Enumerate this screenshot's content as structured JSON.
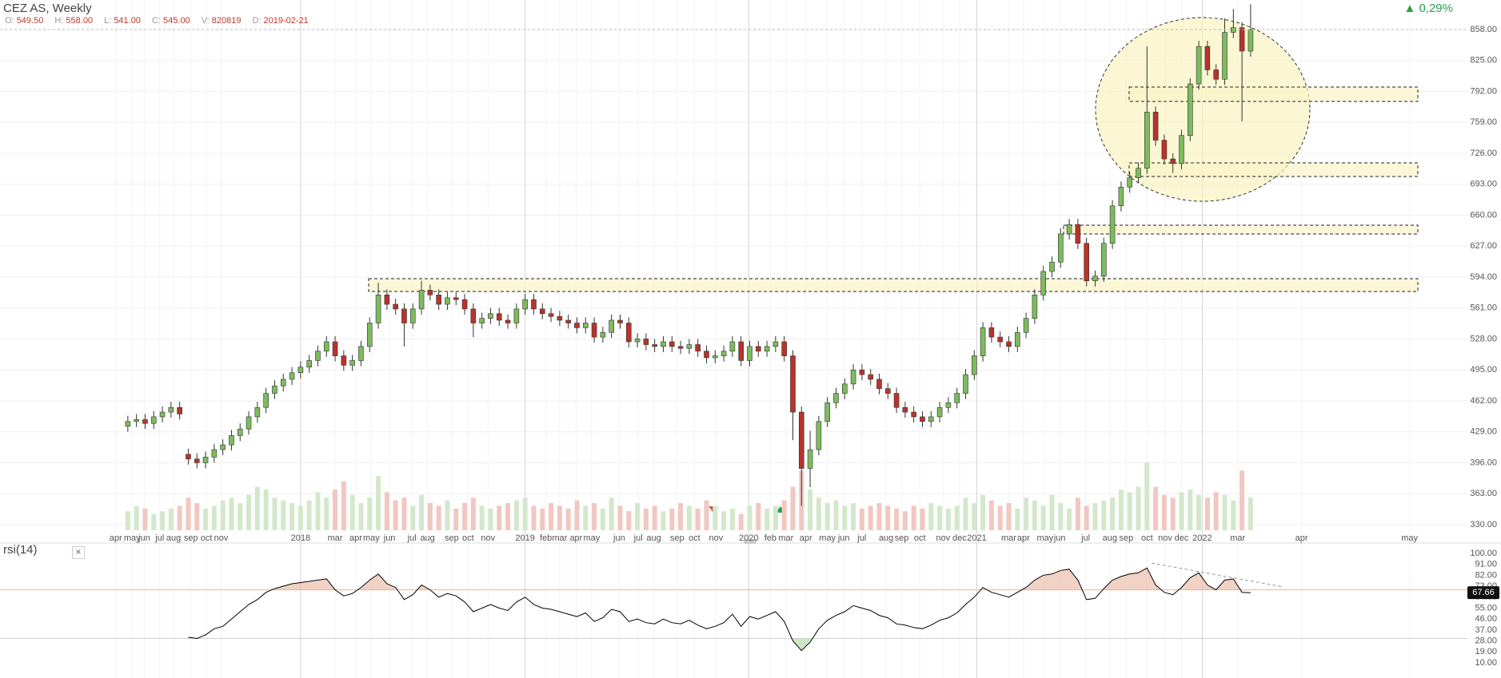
{
  "header": {
    "title": "CEZ AS, Weekly",
    "change": "0,29%",
    "info": [
      {
        "key": "O:",
        "value": "549.50"
      },
      {
        "key": "H:",
        "value": "558.00"
      },
      {
        "key": "L:",
        "value": "541.00"
      },
      {
        "key": "C:",
        "value": "545.00"
      },
      {
        "key": "V:",
        "value": "820819"
      },
      {
        "key": "D:",
        "value": "2019-02-21"
      }
    ]
  },
  "chart_data": [
    {
      "type": "candlestick",
      "up_color": "#7dbb5e",
      "down_color": "#b8332a",
      "grid": true,
      "xlim": [
        -14.8,
        155.1
      ],
      "ylim": [
        320.6,
        889.5
      ],
      "yticks": [
        {
          "value": 330,
          "label": "330.00"
        },
        {
          "value": 363,
          "label": "363.00"
        },
        {
          "value": 396,
          "label": "396.00"
        },
        {
          "value": 429,
          "label": "429.00"
        },
        {
          "value": 462,
          "label": "462.00"
        },
        {
          "value": 495,
          "label": "495.00"
        },
        {
          "value": 528,
          "label": "528.00"
        },
        {
          "value": 561,
          "label": "561.00"
        },
        {
          "value": 594,
          "label": "594.00"
        },
        {
          "value": 627,
          "label": "627.00"
        },
        {
          "value": 660,
          "label": "660.00"
        },
        {
          "value": 693,
          "label": "693.00"
        },
        {
          "value": 726,
          "label": "726.00"
        },
        {
          "value": 759,
          "label": "759.00"
        },
        {
          "value": 792,
          "label": "792.00"
        },
        {
          "value": 825,
          "label": "825.00"
        },
        {
          "value": 858,
          "label": "858.00"
        }
      ],
      "xticks": [
        {
          "value": -1.4,
          "label": "apr"
        },
        {
          "value": 0.5,
          "label": "may"
        },
        {
          "value": 1.9,
          "label": "jun"
        },
        {
          "value": 3.7,
          "label": "jul"
        },
        {
          "value": 5.3,
          "label": "aug"
        },
        {
          "value": 7.3,
          "label": "sep"
        },
        {
          "value": 9.1,
          "label": "oct"
        },
        {
          "value": 10.8,
          "label": "nov"
        },
        {
          "value": 20.0,
          "label": "2018"
        },
        {
          "value": 24.0,
          "label": "mar"
        },
        {
          "value": 26.4,
          "label": "apr"
        },
        {
          "value": 28.2,
          "label": "may"
        },
        {
          "value": 30.3,
          "label": "jun"
        },
        {
          "value": 32.9,
          "label": "jul"
        },
        {
          "value": 34.7,
          "label": "aug"
        },
        {
          "value": 37.5,
          "label": "sep"
        },
        {
          "value": 39.4,
          "label": "oct"
        },
        {
          "value": 41.7,
          "label": "nov"
        },
        {
          "value": 46.0,
          "label": "2019"
        },
        {
          "value": 48.4,
          "label": "feb"
        },
        {
          "value": 50.0,
          "label": "mar"
        },
        {
          "value": 51.9,
          "label": "apr"
        },
        {
          "value": 53.7,
          "label": "may"
        },
        {
          "value": 56.9,
          "label": "jun"
        },
        {
          "value": 59.1,
          "label": "jul"
        },
        {
          "value": 60.9,
          "label": "aug"
        },
        {
          "value": 63.6,
          "label": "sep"
        },
        {
          "value": 65.6,
          "label": "oct"
        },
        {
          "value": 68.1,
          "label": "nov"
        },
        {
          "value": 71.9,
          "label": "2020"
        },
        {
          "value": 74.4,
          "label": "feb"
        },
        {
          "value": 76.2,
          "label": "mar"
        },
        {
          "value": 78.5,
          "label": "apr"
        },
        {
          "value": 81.0,
          "label": "may"
        },
        {
          "value": 82.9,
          "label": "jun"
        },
        {
          "value": 85.0,
          "label": "jul"
        },
        {
          "value": 87.8,
          "label": "aug"
        },
        {
          "value": 89.6,
          "label": "sep"
        },
        {
          "value": 91.7,
          "label": "oct"
        },
        {
          "value": 94.4,
          "label": "nov"
        },
        {
          "value": 96.3,
          "label": "dec"
        },
        {
          "value": 98.3,
          "label": "2021"
        },
        {
          "value": 102.0,
          "label": "mar"
        },
        {
          "value": 103.7,
          "label": "apr"
        },
        {
          "value": 106.2,
          "label": "may"
        },
        {
          "value": 107.9,
          "label": "jun"
        },
        {
          "value": 110.9,
          "label": "jul"
        },
        {
          "value": 113.7,
          "label": "aug"
        },
        {
          "value": 115.6,
          "label": "sep"
        },
        {
          "value": 118.0,
          "label": "oct"
        },
        {
          "value": 120.1,
          "label": "nov"
        },
        {
          "value": 122.0,
          "label": "dec"
        },
        {
          "value": 124.4,
          "label": "2022"
        },
        {
          "value": 128.5,
          "label": "mar"
        },
        {
          "value": 135.9,
          "label": "apr"
        },
        {
          "value": 148.4,
          "label": "may"
        }
      ],
      "open": [
        435,
        440,
        442,
        438,
        445,
        450,
        455,
        405,
        400,
        396,
        402,
        410,
        415,
        425,
        432,
        445,
        455,
        470,
        478,
        485,
        492,
        498,
        505,
        515,
        525,
        510,
        500,
        505,
        520,
        545,
        575,
        565,
        560,
        545,
        560,
        580,
        575,
        565,
        572,
        570,
        560,
        545,
        550,
        555,
        548,
        545,
        560,
        570,
        560,
        555,
        552,
        548,
        545,
        540,
        545,
        530,
        535,
        548,
        545,
        525,
        528,
        522,
        520,
        525,
        520,
        518,
        522,
        515,
        508,
        510,
        515,
        525,
        505,
        520,
        515,
        520,
        525,
        510,
        450,
        390,
        410,
        440,
        460,
        470,
        480,
        495,
        490,
        485,
        475,
        470,
        455,
        450,
        445,
        440,
        445,
        455,
        460,
        470,
        490,
        510,
        540,
        530,
        525,
        520,
        535,
        550,
        575,
        600,
        610,
        640,
        650,
        630,
        590,
        595,
        630,
        670,
        690,
        700,
        710,
        770,
        740,
        720,
        715,
        745,
        800,
        840,
        815,
        805,
        855,
        860,
        835
      ],
      "high": [
        446,
        448,
        448,
        451,
        456,
        461,
        461,
        411,
        406,
        408,
        416,
        421,
        431,
        438,
        451,
        461,
        476,
        484,
        491,
        498,
        504,
        511,
        521,
        531,
        531,
        516,
        511,
        526,
        551,
        588,
        581,
        571,
        566,
        566,
        590,
        586,
        581,
        578,
        578,
        576,
        566,
        556,
        561,
        561,
        554,
        566,
        576,
        576,
        566,
        561,
        558,
        554,
        551,
        551,
        551,
        541,
        554,
        554,
        551,
        534,
        534,
        528,
        531,
        531,
        526,
        528,
        528,
        521,
        516,
        521,
        531,
        531,
        526,
        526,
        526,
        531,
        531,
        516,
        456,
        430,
        446,
        466,
        476,
        486,
        501,
        501,
        496,
        491,
        481,
        476,
        461,
        456,
        451,
        451,
        461,
        466,
        476,
        496,
        516,
        546,
        546,
        536,
        531,
        541,
        556,
        581,
        606,
        616,
        646,
        656,
        656,
        636,
        601,
        636,
        676,
        696,
        706,
        716,
        840,
        776,
        746,
        726,
        751,
        806,
        846,
        846,
        821,
        870,
        880,
        866,
        885
      ],
      "low": [
        429,
        434,
        432,
        432,
        439,
        444,
        442,
        394,
        390,
        390,
        396,
        404,
        409,
        419,
        426,
        439,
        449,
        464,
        472,
        479,
        486,
        492,
        499,
        509,
        504,
        494,
        494,
        499,
        514,
        539,
        559,
        554,
        520,
        539,
        554,
        569,
        559,
        559,
        564,
        554,
        530,
        539,
        544,
        542,
        539,
        539,
        554,
        554,
        549,
        546,
        542,
        539,
        534,
        534,
        524,
        524,
        529,
        539,
        519,
        519,
        516,
        514,
        514,
        514,
        512,
        512,
        509,
        502,
        502,
        504,
        509,
        499,
        499,
        509,
        509,
        514,
        504,
        420,
        350,
        370,
        404,
        434,
        454,
        464,
        474,
        484,
        479,
        469,
        464,
        449,
        444,
        439,
        434,
        434,
        439,
        449,
        454,
        464,
        484,
        504,
        524,
        519,
        514,
        514,
        529,
        544,
        569,
        594,
        604,
        634,
        624,
        584,
        584,
        589,
        624,
        664,
        684,
        694,
        704,
        734,
        714,
        705,
        709,
        739,
        794,
        809,
        799,
        799,
        849,
        760,
        829
      ],
      "close": [
        440,
        442,
        438,
        445,
        450,
        455,
        448,
        400,
        396,
        402,
        410,
        415,
        425,
        432,
        445,
        455,
        470,
        478,
        485,
        492,
        498,
        505,
        515,
        525,
        510,
        500,
        505,
        520,
        545,
        575,
        565,
        560,
        545,
        560,
        580,
        575,
        565,
        572,
        570,
        560,
        545,
        550,
        555,
        548,
        545,
        560,
        570,
        560,
        555,
        552,
        548,
        545,
        540,
        545,
        530,
        535,
        548,
        545,
        525,
        528,
        522,
        520,
        525,
        520,
        518,
        522,
        515,
        508,
        510,
        515,
        525,
        505,
        520,
        515,
        520,
        525,
        510,
        450,
        390,
        410,
        440,
        460,
        470,
        480,
        495,
        490,
        485,
        475,
        470,
        455,
        450,
        445,
        440,
        445,
        455,
        460,
        470,
        490,
        510,
        540,
        530,
        525,
        520,
        535,
        550,
        575,
        600,
        610,
        640,
        650,
        630,
        590,
        595,
        630,
        670,
        690,
        700,
        710,
        770,
        740,
        720,
        715,
        745,
        800,
        840,
        815,
        805,
        855,
        860,
        835,
        858
      ],
      "volume": [
        700000.0,
        900000.0,
        800000.0,
        600000.0,
        700000.0,
        800000.0,
        900000.0,
        1200000.0,
        1000000.0,
        800000.0,
        900000.0,
        1100000.0,
        1200000.0,
        1000000.0,
        1300000.0,
        1600000.0,
        1500000.0,
        1200000.0,
        1100000.0,
        1000000.0,
        900000.0,
        1100000.0,
        1400000.0,
        1200000.0,
        1500000.0,
        1800000.0,
        1300000.0,
        1000000.0,
        1200000.0,
        2000000.0,
        1400000.0,
        1100000.0,
        1200000.0,
        900000.0,
        1300000.0,
        1000000.0,
        900000.0,
        1100000.0,
        800000.0,
        1000000.0,
        1200000.0,
        900000.0,
        800000.0,
        900000.0,
        1000000.0,
        1100000.0,
        1200000.0,
        900000.0,
        800000.0,
        1000000.0,
        900000.0,
        800000.0,
        1100000.0,
        900000.0,
        1000000.0,
        800000.0,
        1200000.0,
        900000.0,
        700000.0,
        1000000.0,
        800000.0,
        900000.0,
        700000.0,
        800000.0,
        1000000.0,
        900000.0,
        800000.0,
        1100000.0,
        900000.0,
        700000.0,
        800000.0,
        600000.0,
        900000.0,
        1000000.0,
        800000.0,
        900000.0,
        1100000.0,
        1600000.0,
        2200000.0,
        1500000.0,
        1200000.0,
        1000000.0,
        1100000.0,
        900000.0,
        1000000.0,
        800000.0,
        900000.0,
        1000000.0,
        900000.0,
        800000.0,
        700000.0,
        900000.0,
        800000.0,
        1000000.0,
        900000.0,
        800000.0,
        900000.0,
        1200000.0,
        1000000.0,
        1300000.0,
        1100000.0,
        900000.0,
        1000000.0,
        800000.0,
        1200000.0,
        1100000.0,
        900000.0,
        1300000.0,
        1000000.0,
        800000.0,
        1200000.0,
        900000.0,
        1000000.0,
        1100000.0,
        1200000.0,
        1500000.0,
        1400000.0,
        1600000.0,
        2500000.0,
        1600000.0,
        1300000.0,
        1200000.0,
        1400000.0,
        1500000.0,
        1300000.0,
        1200000.0,
        1400000.0,
        1300000.0,
        1100000.0,
        2200000.0,
        1200000.0
      ]
    },
    {
      "type": "line",
      "name": "rsi(14)",
      "color": "#000000",
      "levels": [
        70,
        30
      ],
      "level_colors": [
        "#e9b49c",
        "#cfcfcf"
      ],
      "xlim": [
        -14.8,
        155.1
      ],
      "ylim": [
        -2.5,
        108.5
      ],
      "yticks": [
        {
          "value": 10,
          "label": "10.00"
        },
        {
          "value": 19,
          "label": "19.00"
        },
        {
          "value": 28,
          "label": "28.00"
        },
        {
          "value": 37,
          "label": "37.00"
        },
        {
          "value": 46,
          "label": "46.00"
        },
        {
          "value": 55,
          "label": "55.00"
        },
        {
          "value": 64,
          "label": "64.00"
        },
        {
          "value": 73,
          "label": "73.00"
        },
        {
          "value": 82,
          "label": "82.00"
        },
        {
          "value": 91,
          "label": "91.00"
        },
        {
          "value": 100,
          "label": "100.00"
        }
      ],
      "values": [
        null,
        null,
        null,
        null,
        null,
        null,
        null,
        31,
        30,
        33,
        38,
        40,
        46,
        52,
        58,
        62,
        68,
        71,
        73,
        75,
        76,
        77,
        78,
        79,
        70,
        65,
        67,
        72,
        78,
        83,
        75,
        72,
        62,
        66,
        74,
        70,
        64,
        67,
        65,
        60,
        52,
        55,
        58,
        55,
        53,
        60,
        64,
        58,
        55,
        54,
        52,
        50,
        48,
        51,
        44,
        47,
        54,
        52,
        44,
        46,
        43,
        42,
        46,
        43,
        42,
        45,
        41,
        38,
        40,
        43,
        50,
        40,
        48,
        46,
        49,
        52,
        44,
        28,
        20,
        27,
        38,
        45,
        49,
        52,
        57,
        55,
        53,
        49,
        47,
        42,
        41,
        39,
        38,
        41,
        45,
        47,
        51,
        58,
        64,
        72,
        68,
        66,
        64,
        68,
        72,
        78,
        82,
        83,
        86,
        87,
        78,
        62,
        63,
        71,
        78,
        81,
        83,
        84,
        88,
        74,
        68,
        66,
        72,
        80,
        84,
        74,
        70,
        78,
        79,
        68,
        67.66
      ]
    }
  ]
}
